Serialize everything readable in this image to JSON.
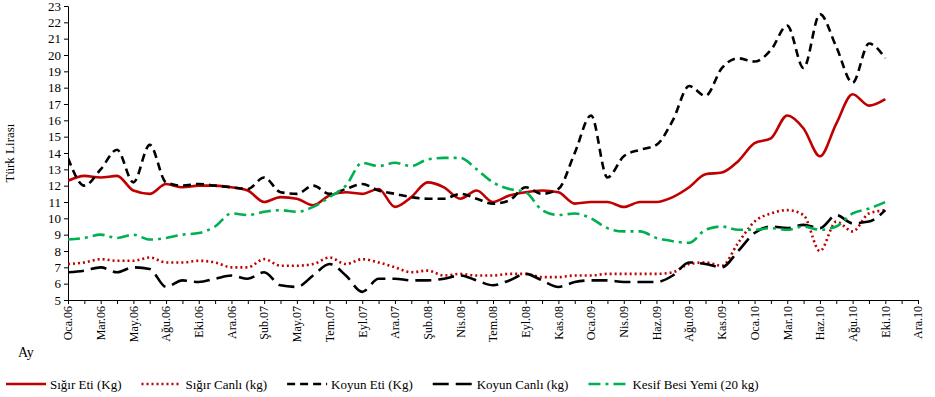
{
  "chart_data": {
    "type": "line",
    "y_label": "Türk Lirası",
    "x_label": "Ay",
    "categories": [
      "Oca.06",
      null,
      "Mar.06",
      null,
      "May.06",
      null,
      "Ağu.06",
      null,
      "Eki.06",
      null,
      "Ara.06",
      null,
      "Şub.07",
      null,
      "May.07",
      null,
      "Tem.07",
      null,
      "Eyl.07",
      null,
      "Ara.07",
      null,
      "Şub.08",
      null,
      "Nis.08",
      null,
      "Tem.08",
      null,
      "Eyl.08",
      null,
      "Kas.08",
      null,
      "Oca.09",
      null,
      "Nis.09",
      null,
      "Haz.09",
      null,
      "Ağu.09",
      null,
      "Kas.09",
      null,
      "Oca.10",
      null,
      "Mar.10",
      null,
      "Haz.10",
      null,
      "Ağu.10",
      null,
      "Eki.10",
      null,
      "Ara.10"
    ],
    "ylim": [
      5,
      23
    ],
    "yticks": [
      5,
      6,
      7,
      8,
      9,
      10,
      11,
      12,
      13,
      14,
      15,
      16,
      17,
      18,
      19,
      20,
      21,
      22,
      23
    ],
    "grid": false,
    "legend": "bottom",
    "series": [
      {
        "name": "Sığır Eti (Kg)",
        "color": "#c00000",
        "line_style": "solid",
        "values": [
          12.3,
          12.6,
          12.5,
          12.6,
          11.7,
          11.5,
          12.1,
          11.9,
          12.0,
          12.0,
          11.9,
          11.7,
          11.0,
          11.3,
          11.2,
          10.8,
          11.4,
          11.6,
          11.5,
          11.8,
          10.7,
          11.3,
          12.2,
          11.9,
          11.2,
          11.7,
          11.0,
          11.4,
          11.6,
          11.7,
          11.6,
          10.9,
          11.0,
          11.0,
          10.7,
          11.0,
          11.0,
          11.3,
          11.9,
          12.7,
          12.8,
          13.5,
          14.6,
          14.9,
          16.3,
          15.5,
          13.8,
          15.8,
          17.6,
          16.9,
          17.3,
          null,
          null
        ]
      },
      {
        "name": "Sığır Canlı (kg)",
        "color": "#c00000",
        "line_style": "dotted",
        "values": [
          7.2,
          7.3,
          7.5,
          7.4,
          7.4,
          7.6,
          7.3,
          7.3,
          7.4,
          7.3,
          7.0,
          7.0,
          7.5,
          7.1,
          7.1,
          7.2,
          7.6,
          7.2,
          7.5,
          7.3,
          7.0,
          6.7,
          6.8,
          6.5,
          6.6,
          6.5,
          6.5,
          6.6,
          6.6,
          6.4,
          6.4,
          6.5,
          6.5,
          6.6,
          6.6,
          6.6,
          6.6,
          6.7,
          7.2,
          7.3,
          7.1,
          8.5,
          9.8,
          10.3,
          10.5,
          10.2,
          8.0,
          9.8,
          9.2,
          10.3,
          10.5,
          null,
          null
        ]
      },
      {
        "name": "Koyun Eti (Kg)",
        "color": "#000000",
        "line_style": "dashed",
        "values": [
          13.7,
          12.0,
          13.0,
          14.2,
          12.2,
          14.5,
          12.2,
          12.0,
          12.1,
          12.0,
          11.9,
          11.8,
          12.5,
          11.6,
          11.5,
          12.0,
          11.5,
          11.8,
          12.1,
          11.7,
          11.5,
          11.3,
          11.2,
          11.2,
          11.5,
          11.2,
          10.9,
          11.1,
          11.9,
          11.5,
          11.8,
          14.0,
          16.3,
          12.5,
          13.8,
          14.2,
          14.5,
          16.0,
          18.1,
          17.5,
          19.2,
          19.8,
          19.6,
          20.3,
          21.8,
          19.2,
          22.5,
          20.5,
          18.3,
          20.7,
          19.8,
          null,
          null
        ]
      },
      {
        "name": "Koyun Canlı (kg)",
        "color": "#000000",
        "line_style": "long-dash",
        "values": [
          6.7,
          6.8,
          7.0,
          6.7,
          7.0,
          6.9,
          5.8,
          6.2,
          6.1,
          6.3,
          6.5,
          6.3,
          6.7,
          5.9,
          5.8,
          6.5,
          7.2,
          6.5,
          5.5,
          6.3,
          6.3,
          6.2,
          6.2,
          6.3,
          6.5,
          6.2,
          5.9,
          6.2,
          6.6,
          6.2,
          5.8,
          6.1,
          6.2,
          6.2,
          6.1,
          6.1,
          6.1,
          6.5,
          7.3,
          7.2,
          7.0,
          8.0,
          9.1,
          9.5,
          9.4,
          9.6,
          9.4,
          10.2,
          9.7,
          9.8,
          10.5,
          null,
          null
        ]
      },
      {
        "name": "Kesif Besi Yemi (20 kg)",
        "color": "#00b050",
        "line_style": "dash-dot",
        "values": [
          8.7,
          8.8,
          9.0,
          8.8,
          9.0,
          8.7,
          8.8,
          9.0,
          9.1,
          9.5,
          10.3,
          10.2,
          10.4,
          10.5,
          10.4,
          10.7,
          11.3,
          12.0,
          13.4,
          13.2,
          13.4,
          13.2,
          13.6,
          13.7,
          13.7,
          13.0,
          12.2,
          11.8,
          11.6,
          10.5,
          10.2,
          10.3,
          10.0,
          9.4,
          9.2,
          9.2,
          8.8,
          8.6,
          8.5,
          9.3,
          9.5,
          9.3,
          9.3,
          9.4,
          9.3,
          9.5,
          9.3,
          9.5,
          10.3,
          10.6,
          11.0,
          null,
          null
        ]
      }
    ]
  }
}
